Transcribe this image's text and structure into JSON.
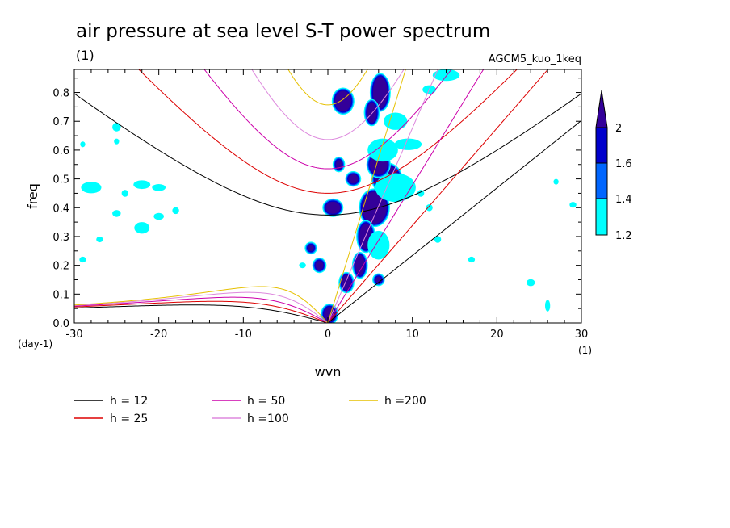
{
  "chart_data": {
    "type": "heatmap",
    "title": "air pressure at sea level S-T power spectrum",
    "title_unit": "(1)",
    "model": "AGCM5_kuo_1keq",
    "xlabel": "wvn",
    "ylabel": "freq",
    "y_unit": "(day-1)",
    "x_unit": "(1)",
    "xlim": [
      -30,
      30
    ],
    "ylim": [
      0.0,
      0.88
    ],
    "x_ticks": [
      -30,
      -20,
      -10,
      0,
      10,
      20,
      30
    ],
    "x_tick_labels": [
      "-30",
      "-20",
      "-10",
      "0",
      "10",
      "20",
      "30"
    ],
    "y_ticks": [
      0.0,
      0.1,
      0.2,
      0.3,
      0.4,
      0.5,
      0.6,
      0.7,
      0.8
    ],
    "y_tick_labels": [
      "0.0",
      "0.1",
      "0.2",
      "0.3",
      "0.4",
      "0.5",
      "0.6",
      "0.7",
      "0.8"
    ],
    "colorbar": {
      "levels": [
        1.2,
        1.4,
        1.6,
        2
      ],
      "labels": [
        "1.2",
        "1.4",
        "1.6",
        "2"
      ],
      "colors": [
        "#00ffff",
        "#0066ff",
        "#0000cc",
        "#330099"
      ]
    },
    "dispersion_curves": [
      {
        "label": "h = 12",
        "h": 12,
        "color": "#000000"
      },
      {
        "label": "h = 25",
        "h": 25,
        "color": "#dd0000"
      },
      {
        "label": "h = 50",
        "h": 50,
        "color": "#cc00aa"
      },
      {
        "label": "h =100",
        "h": 100,
        "color": "#dd88dd"
      },
      {
        "label": "h =200",
        "h": 200,
        "color": "#e6c000"
      }
    ],
    "features": [
      {
        "x": 7.0,
        "y": 0.5,
        "rx": 1.6,
        "ry": 0.05,
        "level": 3
      },
      {
        "x": 5.5,
        "y": 0.4,
        "rx": 1.6,
        "ry": 0.06,
        "level": 3
      },
      {
        "x": 4.5,
        "y": 0.3,
        "rx": 0.9,
        "ry": 0.05,
        "level": 3
      },
      {
        "x": 6.0,
        "y": 0.55,
        "rx": 1.2,
        "ry": 0.04,
        "level": 3
      },
      {
        "x": 6.2,
        "y": 0.8,
        "rx": 1.0,
        "ry": 0.06,
        "level": 3
      },
      {
        "x": 5.2,
        "y": 0.73,
        "rx": 0.7,
        "ry": 0.04,
        "level": 3
      },
      {
        "x": 3.8,
        "y": 0.2,
        "rx": 0.7,
        "ry": 0.04,
        "level": 3
      },
      {
        "x": 2.2,
        "y": 0.14,
        "rx": 0.7,
        "ry": 0.03,
        "level": 3
      },
      {
        "x": 1.8,
        "y": 0.77,
        "rx": 1.1,
        "ry": 0.04,
        "level": 3
      },
      {
        "x": 0.6,
        "y": 0.4,
        "rx": 1.0,
        "ry": 0.025,
        "level": 3
      },
      {
        "x": 0.2,
        "y": 0.03,
        "rx": 0.8,
        "ry": 0.03,
        "level": 3
      },
      {
        "x": 8.0,
        "y": 0.47,
        "rx": 2.4,
        "ry": 0.05,
        "level": 1
      },
      {
        "x": 6.5,
        "y": 0.6,
        "rx": 1.8,
        "ry": 0.04,
        "level": 1
      },
      {
        "x": 9.5,
        "y": 0.62,
        "rx": 1.6,
        "ry": 0.02,
        "level": 1
      },
      {
        "x": 8.0,
        "y": 0.7,
        "rx": 1.4,
        "ry": 0.03,
        "level": 1
      },
      {
        "x": 6.0,
        "y": 0.27,
        "rx": 1.3,
        "ry": 0.05,
        "level": 1
      },
      {
        "x": -1.0,
        "y": 0.2,
        "rx": 0.6,
        "ry": 0.02,
        "level": 3
      },
      {
        "x": -2.0,
        "y": 0.26,
        "rx": 0.5,
        "ry": 0.015,
        "level": 3
      },
      {
        "x": 1.3,
        "y": 0.55,
        "rx": 0.5,
        "ry": 0.02,
        "level": 3
      },
      {
        "x": 3.0,
        "y": 0.5,
        "rx": 0.7,
        "ry": 0.02,
        "level": 3
      },
      {
        "x": 6.0,
        "y": 0.15,
        "rx": 0.5,
        "ry": 0.015,
        "level": 3
      },
      {
        "x": 14.0,
        "y": 0.86,
        "rx": 1.6,
        "ry": 0.02,
        "level": 1
      },
      {
        "x": 12.0,
        "y": 0.81,
        "rx": 0.8,
        "ry": 0.015,
        "level": 1
      },
      {
        "x": -25.0,
        "y": 0.68,
        "rx": 0.5,
        "ry": 0.015,
        "level": 1
      },
      {
        "x": -28.0,
        "y": 0.47,
        "rx": 1.2,
        "ry": 0.02,
        "level": 1
      },
      {
        "x": -22.0,
        "y": 0.33,
        "rx": 0.9,
        "ry": 0.02,
        "level": 1
      },
      {
        "x": -22.0,
        "y": 0.48,
        "rx": 1.0,
        "ry": 0.015,
        "level": 1
      },
      {
        "x": -20.0,
        "y": 0.47,
        "rx": 0.8,
        "ry": 0.012,
        "level": 1
      },
      {
        "x": -20.0,
        "y": 0.37,
        "rx": 0.6,
        "ry": 0.012,
        "level": 1
      },
      {
        "x": -25.0,
        "y": 0.38,
        "rx": 0.5,
        "ry": 0.012,
        "level": 1
      },
      {
        "x": -24.0,
        "y": 0.45,
        "rx": 0.4,
        "ry": 0.012,
        "level": 1
      },
      {
        "x": -29.0,
        "y": 0.22,
        "rx": 0.4,
        "ry": 0.01,
        "level": 1
      },
      {
        "x": -27.0,
        "y": 0.29,
        "rx": 0.4,
        "ry": 0.01,
        "level": 1
      },
      {
        "x": -18.0,
        "y": 0.39,
        "rx": 0.4,
        "ry": 0.012,
        "level": 1
      },
      {
        "x": -25.0,
        "y": 0.63,
        "rx": 0.3,
        "ry": 0.01,
        "level": 1
      },
      {
        "x": 12.0,
        "y": 0.4,
        "rx": 0.4,
        "ry": 0.012,
        "level": 1
      },
      {
        "x": 11.0,
        "y": 0.45,
        "rx": 0.4,
        "ry": 0.012,
        "level": 1
      },
      {
        "x": 13.0,
        "y": 0.29,
        "rx": 0.4,
        "ry": 0.012,
        "level": 1
      },
      {
        "x": 24.0,
        "y": 0.14,
        "rx": 0.5,
        "ry": 0.012,
        "level": 1
      },
      {
        "x": 26.0,
        "y": 0.06,
        "rx": 0.3,
        "ry": 0.02,
        "level": 1
      },
      {
        "x": 27.0,
        "y": 0.49,
        "rx": 0.3,
        "ry": 0.01,
        "level": 1
      },
      {
        "x": 29.0,
        "y": 0.41,
        "rx": 0.4,
        "ry": 0.01,
        "level": 1
      },
      {
        "x": -3.0,
        "y": 0.2,
        "rx": 0.4,
        "ry": 0.01,
        "level": 1
      },
      {
        "x": 17.0,
        "y": 0.22,
        "rx": 0.4,
        "ry": 0.01,
        "level": 1
      },
      {
        "x": -29.0,
        "y": 0.62,
        "rx": 0.3,
        "ry": 0.01,
        "level": 1
      }
    ]
  }
}
